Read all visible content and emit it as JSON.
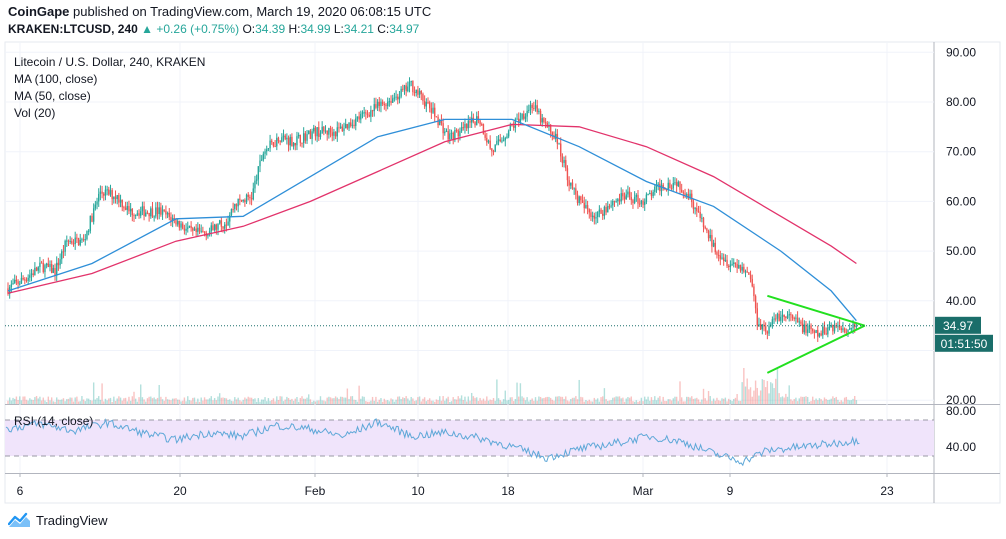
{
  "header": {
    "publisher": "CoinGape",
    "published_text": "published on TradingView.com, March 19, 2020 06:08:15 UTC",
    "symbol": "KRAKEN:LTCUSD, 240",
    "change": "+0.26 (+0.75%)",
    "open_label": "O:",
    "open": "34.39",
    "high_label": "H:",
    "high": "34.99",
    "low_label": "L:",
    "low": "34.21",
    "close_label": "C:",
    "close": "34.97"
  },
  "legend": {
    "title": "Litecoin / U.S. Dollar, 240, KRAKEN",
    "ma100": "MA (100, close)",
    "ma50": "MA (50, close)",
    "vol": "Vol (20)"
  },
  "rsi": {
    "label": "RSI (14, close)"
  },
  "footer": {
    "brand": "TradingView"
  },
  "price_badge": {
    "price": "34.97",
    "countdown": "01:51:50"
  },
  "colors": {
    "up": "#26a69a",
    "down": "#ef5350",
    "ma50": "#2f8fd8",
    "ma100": "#e2336b",
    "triangle": "#22e01f",
    "rsi": "#5fa8d8",
    "rsi_band": "#f0e4fb",
    "badge": "#1a6e6a"
  },
  "chart_data": [
    {
      "type": "candlestick",
      "title": "Litecoin / U.S. Dollar, 240, KRAKEN",
      "ylim": [
        20,
        90
      ],
      "y_ticks": [
        20,
        30,
        40,
        50,
        60,
        70,
        80,
        90
      ],
      "y_tick_labels": [
        "20.00",
        "",
        "40.00",
        "50.00",
        "60.00",
        "70.00",
        "80.00",
        "90.00"
      ],
      "x_ticks": [
        "6",
        "20",
        "Feb",
        "10",
        "18",
        "Mar",
        "9",
        "23"
      ],
      "close_anchors": [
        [
          0,
          42.5
        ],
        [
          10,
          44.5
        ],
        [
          20,
          47
        ],
        [
          28,
          46
        ],
        [
          35,
          52
        ],
        [
          45,
          52
        ],
        [
          55,
          62
        ],
        [
          65,
          61
        ],
        [
          72,
          58
        ],
        [
          90,
          58
        ],
        [
          100,
          56
        ],
        [
          110,
          53.5
        ],
        [
          120,
          54
        ],
        [
          130,
          56
        ],
        [
          135,
          59.5
        ],
        [
          145,
          61
        ],
        [
          152,
          70
        ],
        [
          162,
          73
        ],
        [
          170,
          72
        ],
        [
          182,
          74
        ],
        [
          195,
          74
        ],
        [
          210,
          77
        ],
        [
          225,
          80
        ],
        [
          235,
          82
        ],
        [
          240,
          83.5
        ],
        [
          248,
          80
        ],
        [
          255,
          77
        ],
        [
          262,
          73
        ],
        [
          270,
          74
        ],
        [
          280,
          77
        ],
        [
          288,
          70
        ],
        [
          295,
          73
        ],
        [
          305,
          77
        ],
        [
          312,
          79.5
        ],
        [
          318,
          76
        ],
        [
          326,
          73
        ],
        [
          335,
          63
        ],
        [
          342,
          59
        ],
        [
          350,
          57
        ],
        [
          360,
          60
        ],
        [
          368,
          61
        ],
        [
          378,
          60
        ],
        [
          388,
          63
        ],
        [
          398,
          64
        ],
        [
          406,
          61
        ],
        [
          414,
          55
        ],
        [
          420,
          51
        ],
        [
          428,
          48
        ],
        [
          436,
          47
        ],
        [
          442,
          45
        ],
        [
          446,
          36
        ],
        [
          452,
          34
        ],
        [
          458,
          37
        ],
        [
          466,
          36.5
        ],
        [
          474,
          34.5
        ],
        [
          482,
          33
        ],
        [
          490,
          35
        ],
        [
          498,
          34.5
        ],
        [
          505,
          34.97
        ]
      ],
      "ma50_points": [
        [
          0,
          42
        ],
        [
          50,
          47.5
        ],
        [
          100,
          56.5
        ],
        [
          140,
          57
        ],
        [
          180,
          65
        ],
        [
          220,
          73
        ],
        [
          260,
          76.5
        ],
        [
          300,
          76.5
        ],
        [
          340,
          71
        ],
        [
          380,
          64
        ],
        [
          420,
          59
        ],
        [
          460,
          50
        ],
        [
          490,
          42
        ],
        [
          505,
          36
        ]
      ],
      "ma100_points": [
        [
          0,
          41.5
        ],
        [
          50,
          45.5
        ],
        [
          100,
          52
        ],
        [
          140,
          55
        ],
        [
          180,
          60
        ],
        [
          220,
          66
        ],
        [
          260,
          72
        ],
        [
          300,
          75.5
        ],
        [
          340,
          75
        ],
        [
          380,
          71
        ],
        [
          420,
          65
        ],
        [
          460,
          57
        ],
        [
          490,
          51
        ],
        [
          505,
          47.5
        ]
      ],
      "triangle": {
        "apex": [
          510,
          35
        ],
        "upper_start": [
          452,
          41
        ],
        "lower_start": [
          452,
          25.5
        ]
      },
      "last_price": 34.97
    },
    {
      "type": "line",
      "title": "RSI (14, close)",
      "ylim": [
        20,
        90
      ],
      "y_tick_labels": [
        "80.00",
        "40.00"
      ],
      "band": [
        30,
        70
      ],
      "rsi_anchors": [
        [
          0,
          60
        ],
        [
          20,
          66
        ],
        [
          40,
          58
        ],
        [
          60,
          67
        ],
        [
          80,
          56
        ],
        [
          100,
          48
        ],
        [
          120,
          56
        ],
        [
          140,
          52
        ],
        [
          160,
          64
        ],
        [
          180,
          60
        ],
        [
          200,
          52
        ],
        [
          220,
          68
        ],
        [
          240,
          52
        ],
        [
          260,
          56
        ],
        [
          280,
          50
        ],
        [
          300,
          40
        ],
        [
          320,
          28
        ],
        [
          340,
          38
        ],
        [
          360,
          44
        ],
        [
          380,
          52
        ],
        [
          400,
          46
        ],
        [
          420,
          32
        ],
        [
          436,
          24
        ],
        [
          450,
          36
        ],
        [
          470,
          40
        ],
        [
          490,
          44
        ],
        [
          505,
          48
        ]
      ]
    }
  ]
}
